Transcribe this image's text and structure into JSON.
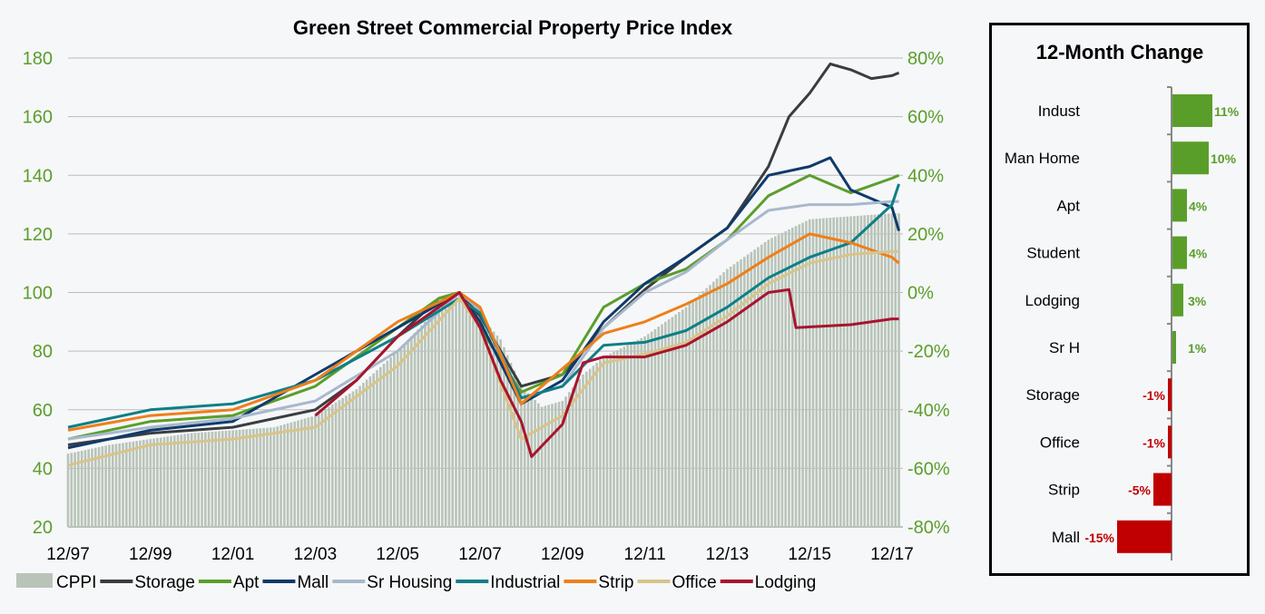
{
  "chart_data": [
    {
      "type": "line",
      "title": "Green Street Commercial Property Price Index",
      "left_axis": {
        "ylim": [
          20,
          180
        ],
        "ticks": [
          20,
          40,
          60,
          80,
          100,
          120,
          140,
          160,
          180
        ],
        "color": "#5a9e2a"
      },
      "right_axis": {
        "ylim": [
          -80,
          80
        ],
        "ticks": [
          "-80%",
          "-60%",
          "-40%",
          "-20%",
          "0%",
          "20%",
          "40%",
          "60%",
          "80%"
        ],
        "color": "#5a9e2a"
      },
      "x_ticks": [
        "12/97",
        "12/99",
        "12/01",
        "12/03",
        "12/05",
        "12/07",
        "12/09",
        "12/11",
        "12/13",
        "12/15",
        "12/17"
      ],
      "grid": "horizontal",
      "legend_position": "bottom",
      "bars": {
        "name": "CPPI",
        "color": "#b8c4b8",
        "points": [
          [
            "1997-12",
            45
          ],
          [
            "1998-12",
            48
          ],
          [
            "1999-12",
            50
          ],
          [
            "2000-12",
            52
          ],
          [
            "2001-12",
            53
          ],
          [
            "2002-12",
            54
          ],
          [
            "2003-12",
            58
          ],
          [
            "2004-12",
            67
          ],
          [
            "2005-12",
            80
          ],
          [
            "2006-12",
            95
          ],
          [
            "2007-06",
            100
          ],
          [
            "2007-12",
            92
          ],
          [
            "2008-06",
            84
          ],
          [
            "2008-12",
            68
          ],
          [
            "2009-06",
            61
          ],
          [
            "2009-12",
            63
          ],
          [
            "2010-06",
            72
          ],
          [
            "2010-12",
            78
          ],
          [
            "2011-12",
            85
          ],
          [
            "2012-12",
            95
          ],
          [
            "2013-12",
            108
          ],
          [
            "2014-12",
            118
          ],
          [
            "2015-12",
            125
          ],
          [
            "2016-12",
            126
          ],
          [
            "2017-12",
            127
          ],
          [
            "2018-02",
            127
          ]
        ]
      },
      "series": [
        {
          "name": "Storage",
          "color": "#3a3d40",
          "points": [
            [
              "1997-12",
              48
            ],
            [
              "1999-12",
              52
            ],
            [
              "2001-12",
              54
            ],
            [
              "2003-12",
              60
            ],
            [
              "2004-12",
              70
            ],
            [
              "2005-12",
              85
            ],
            [
              "2006-12",
              98
            ],
            [
              "2007-06",
              100
            ],
            [
              "2007-12",
              92
            ],
            [
              "2008-12",
              68
            ],
            [
              "2009-12",
              72
            ],
            [
              "2010-12",
              88
            ],
            [
              "2011-12",
              101
            ],
            [
              "2012-12",
              112
            ],
            [
              "2013-12",
              122
            ],
            [
              "2014-12",
              143
            ],
            [
              "2015-06",
              160
            ],
            [
              "2015-12",
              168
            ],
            [
              "2016-06",
              178
            ],
            [
              "2016-12",
              176
            ],
            [
              "2017-06",
              173
            ],
            [
              "2017-12",
              174
            ],
            [
              "2018-02",
              175
            ]
          ]
        },
        {
          "name": "Apt",
          "color": "#5a9e2a",
          "points": [
            [
              "1997-12",
              50
            ],
            [
              "1999-12",
              56
            ],
            [
              "2001-12",
              58
            ],
            [
              "2003-12",
              68
            ],
            [
              "2005-12",
              88
            ],
            [
              "2006-12",
              98
            ],
            [
              "2007-06",
              100
            ],
            [
              "2007-12",
              88
            ],
            [
              "2008-12",
              66
            ],
            [
              "2009-12",
              72
            ],
            [
              "2010-12",
              95
            ],
            [
              "2011-12",
              103
            ],
            [
              "2012-12",
              108
            ],
            [
              "2013-12",
              118
            ],
            [
              "2014-12",
              133
            ],
            [
              "2015-12",
              140
            ],
            [
              "2016-12",
              134
            ],
            [
              "2017-12",
              139
            ],
            [
              "2018-02",
              140
            ]
          ]
        },
        {
          "name": "Mall",
          "color": "#0f3a6b",
          "points": [
            [
              "1997-12",
              47
            ],
            [
              "1999-12",
              53
            ],
            [
              "2001-12",
              56
            ],
            [
              "2003-12",
              72
            ],
            [
              "2005-12",
              88
            ],
            [
              "2007-06",
              100
            ],
            [
              "2007-12",
              90
            ],
            [
              "2008-12",
              62
            ],
            [
              "2009-12",
              70
            ],
            [
              "2010-12",
              90
            ],
            [
              "2011-12",
              103
            ],
            [
              "2012-12",
              112
            ],
            [
              "2013-12",
              122
            ],
            [
              "2014-12",
              140
            ],
            [
              "2015-12",
              143
            ],
            [
              "2016-06",
              146
            ],
            [
              "2016-12",
              135
            ],
            [
              "2017-12",
              129
            ],
            [
              "2018-02",
              121
            ]
          ]
        },
        {
          "name": "Sr Housing",
          "color": "#a8b8cc",
          "points": [
            [
              "1997-12",
              50
            ],
            [
              "1999-12",
              54
            ],
            [
              "2001-12",
              57
            ],
            [
              "2003-12",
              63
            ],
            [
              "2005-12",
              80
            ],
            [
              "2007-06",
              100
            ],
            [
              "2007-12",
              94
            ],
            [
              "2008-12",
              64
            ],
            [
              "2009-12",
              68
            ],
            [
              "2010-12",
              88
            ],
            [
              "2011-12",
              100
            ],
            [
              "2012-12",
              107
            ],
            [
              "2013-12",
              118
            ],
            [
              "2014-12",
              128
            ],
            [
              "2015-12",
              130
            ],
            [
              "2016-12",
              130
            ],
            [
              "2017-12",
              131
            ],
            [
              "2018-02",
              131
            ]
          ]
        },
        {
          "name": "Industrial",
          "color": "#0e7f86",
          "points": [
            [
              "1997-12",
              54
            ],
            [
              "1999-12",
              60
            ],
            [
              "2001-12",
              62
            ],
            [
              "2003-12",
              70
            ],
            [
              "2005-12",
              85
            ],
            [
              "2007-06",
              98
            ],
            [
              "2007-12",
              93
            ],
            [
              "2008-12",
              64
            ],
            [
              "2009-12",
              68
            ],
            [
              "2010-12",
              82
            ],
            [
              "2011-12",
              83
            ],
            [
              "2012-12",
              87
            ],
            [
              "2013-12",
              95
            ],
            [
              "2014-12",
              105
            ],
            [
              "2015-12",
              112
            ],
            [
              "2016-12",
              117
            ],
            [
              "2017-12",
              130
            ],
            [
              "2018-02",
              137
            ]
          ]
        },
        {
          "name": "Strip",
          "color": "#ee7f1a",
          "points": [
            [
              "1997-12",
              53
            ],
            [
              "1999-12",
              58
            ],
            [
              "2001-12",
              60
            ],
            [
              "2003-12",
              70
            ],
            [
              "2005-12",
              90
            ],
            [
              "2007-06",
              100
            ],
            [
              "2007-12",
              95
            ],
            [
              "2008-12",
              62
            ],
            [
              "2009-12",
              74
            ],
            [
              "2010-12",
              86
            ],
            [
              "2011-12",
              90
            ],
            [
              "2012-12",
              96
            ],
            [
              "2013-12",
              103
            ],
            [
              "2014-12",
              112
            ],
            [
              "2015-12",
              120
            ],
            [
              "2016-12",
              117
            ],
            [
              "2017-12",
              112
            ],
            [
              "2018-02",
              110
            ]
          ]
        },
        {
          "name": "Office",
          "color": "#d8c48a",
          "points": [
            [
              "1997-12",
              41
            ],
            [
              "1999-12",
              48
            ],
            [
              "2001-12",
              50
            ],
            [
              "2003-12",
              54
            ],
            [
              "2005-12",
              75
            ],
            [
              "2007-06",
              98
            ],
            [
              "2007-12",
              88
            ],
            [
              "2008-12",
              50
            ],
            [
              "2009-12",
              58
            ],
            [
              "2010-12",
              76
            ],
            [
              "2011-12",
              79
            ],
            [
              "2012-12",
              83
            ],
            [
              "2013-12",
              92
            ],
            [
              "2014-12",
              103
            ],
            [
              "2015-12",
              110
            ],
            [
              "2016-12",
              113
            ],
            [
              "2017-12",
              114
            ],
            [
              "2018-02",
              114
            ]
          ]
        },
        {
          "name": "Lodging",
          "color": "#a8142e",
          "points": [
            [
              "2003-12",
              58
            ],
            [
              "2004-12",
              70
            ],
            [
              "2005-12",
              85
            ],
            [
              "2007-06",
              100
            ],
            [
              "2007-12",
              88
            ],
            [
              "2008-06",
              70
            ],
            [
              "2008-12",
              56
            ],
            [
              "2009-03",
              44
            ],
            [
              "2009-12",
              55
            ],
            [
              "2010-06",
              76
            ],
            [
              "2010-12",
              78
            ],
            [
              "2011-12",
              78
            ],
            [
              "2012-12",
              82
            ],
            [
              "2013-12",
              90
            ],
            [
              "2014-12",
              100
            ],
            [
              "2015-06",
              101
            ],
            [
              "2015-08",
              88
            ],
            [
              "2016-12",
              89
            ],
            [
              "2017-12",
              91
            ],
            [
              "2018-02",
              91
            ]
          ]
        }
      ]
    },
    {
      "type": "bar",
      "orientation": "horizontal",
      "title": "12-Month Change",
      "categories": [
        "Indust",
        "Man Home",
        "Apt",
        "Student",
        "Lodging",
        "Sr H",
        "Storage",
        "Office",
        "Strip",
        "Mall"
      ],
      "values": [
        11,
        10,
        4,
        4,
        3,
        1,
        -1,
        -1,
        -5,
        -15
      ],
      "labels": [
        "11%",
        "10%",
        "4%",
        "4%",
        "3%",
        "1%",
        "-1%",
        "-1%",
        "-5%",
        "-15%"
      ],
      "positive_color": "#5a9e2a",
      "negative_color": "#c00000"
    }
  ]
}
